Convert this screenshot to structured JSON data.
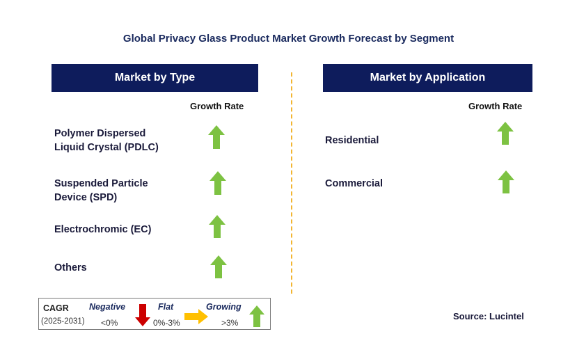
{
  "title": "Global Privacy Glass Product Market Growth Forecast by Segment",
  "left_panel": {
    "header": "Market by Type",
    "column_label": "Growth Rate",
    "segments": [
      {
        "label_lines": [
          "Polymer Dispersed",
          "Liquid Crystal (PDLC)"
        ],
        "trend": "growing"
      },
      {
        "label_lines": [
          "Suspended Particle",
          "Device (SPD)"
        ],
        "trend": "growing"
      },
      {
        "label_lines": [
          "Electrochromic (EC)"
        ],
        "trend": "growing"
      },
      {
        "label_lines": [
          "Others"
        ],
        "trend": "growing"
      }
    ]
  },
  "right_panel": {
    "header": "Market by Application",
    "column_label": "Growth Rate",
    "segments": [
      {
        "label_lines": [
          "Residential"
        ],
        "trend": "growing"
      },
      {
        "label_lines": [
          "Commercial"
        ],
        "trend": "growing"
      }
    ]
  },
  "legend": {
    "cagr_label": "CAGR",
    "period": "(2025-2031)",
    "negative": {
      "label": "Negative",
      "range": "<0%",
      "icon": "arrow-down-icon",
      "color": "#cc0000"
    },
    "flat": {
      "label": "Flat",
      "range": "0%-3%",
      "icon": "arrow-right-icon",
      "color": "#ffc000"
    },
    "growing": {
      "label": "Growing",
      "range": ">3%",
      "icon": "arrow-up-icon",
      "color": "#7dc242"
    }
  },
  "source": "Source: Lucintel",
  "colors": {
    "header_bg": "#0e1c5c",
    "divider": "#f2b531",
    "growing": "#7dc242",
    "negative": "#cc0000",
    "flat": "#ffc000"
  }
}
